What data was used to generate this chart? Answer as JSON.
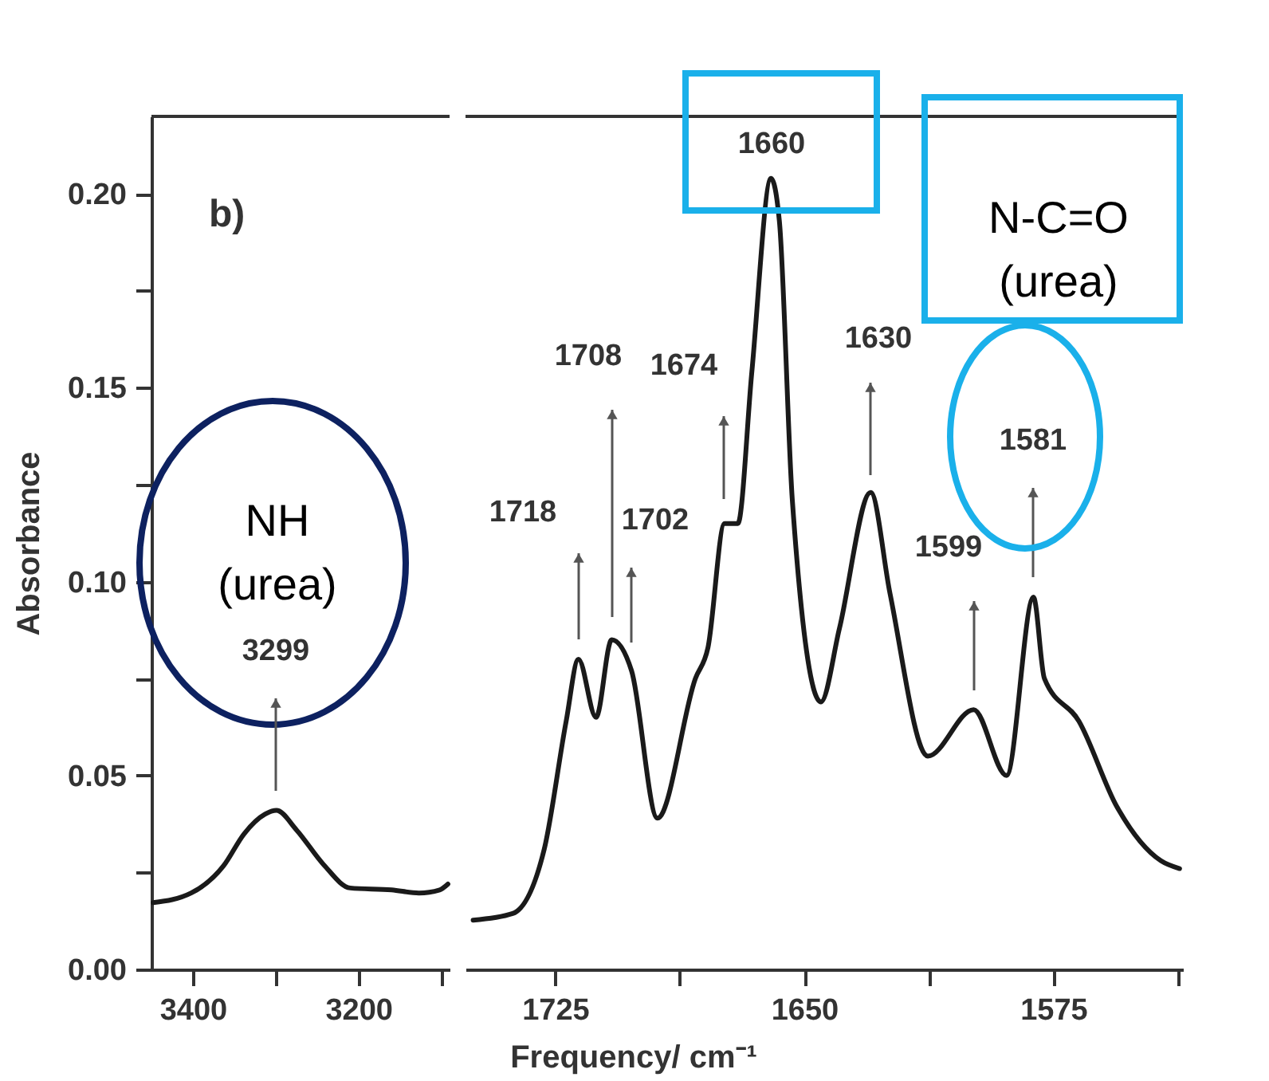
{
  "chart_data": [
    {
      "type": "line",
      "ylabel": "Absorbance",
      "color": "#1a1a1a",
      "xlim": [
        3450,
        3090
      ],
      "ylim": [
        0,
        0.22
      ],
      "xticks": [
        3400,
        {
          "value": 3300,
          "label": null
        },
        3200,
        {
          "value": 3100,
          "label": null
        }
      ],
      "yticks": [
        {
          "value": 0,
          "label": "0.00"
        },
        {
          "value": 0.025,
          "label": null
        },
        {
          "value": 0.05,
          "label": "0.05"
        },
        {
          "value": 0.075,
          "label": null
        },
        {
          "value": 0.1,
          "label": "0.10"
        },
        {
          "value": 0.125,
          "label": null
        },
        {
          "value": 0.15,
          "label": "0.15"
        },
        {
          "value": 0.175,
          "label": null
        },
        {
          "value": 0.2,
          "label": "0.20"
        }
      ],
      "x": [
        3448,
        3402,
        3363,
        3338,
        3313,
        3299,
        3275,
        3242,
        3210,
        3160,
        3127,
        3102,
        3092
      ],
      "values": [
        0.0172,
        0.0197,
        0.0267,
        0.035,
        0.04,
        0.041,
        0.036,
        0.027,
        0.021,
        0.0205,
        0.0197,
        0.0205,
        0.022
      ],
      "annotations": [
        "b)",
        "NH (urea)",
        "3299"
      ]
    },
    {
      "type": "line",
      "xlabel": "Frequency/ cm⁻¹",
      "color": "#1a1a1a",
      "xlim": [
        1752,
        1536
      ],
      "ylim": [
        0,
        0.22
      ],
      "tick_labels": "x",
      "xticks": [
        1725,
        {
          "value": 1687.5,
          "label": null
        },
        1650,
        {
          "value": 1612.5,
          "label": null
        },
        1575,
        {
          "value": 1537.5,
          "label": null
        }
      ],
      "x": [
        1749.7,
        1737.8,
        1728.3,
        1721.7,
        1718,
        1712.7,
        1708,
        1702,
        1694.2,
        1682.8,
        1679,
        1674,
        1670,
        1665.8,
        1660,
        1657.5,
        1653.6,
        1645,
        1639.4,
        1630,
        1624.2,
        1612.8,
        1599,
        1589.1,
        1581,
        1577.7,
        1567.3,
        1555.9,
        1542.6,
        1537
      ],
      "values": [
        0.0127,
        0.0144,
        0.031,
        0.064,
        0.08,
        0.065,
        0.085,
        0.077,
        0.039,
        0.075,
        0.083,
        0.115,
        0.115,
        0.154,
        0.204,
        0.193,
        0.121,
        0.069,
        0.088,
        0.123,
        0.097,
        0.055,
        0.067,
        0.05,
        0.096,
        0.075,
        0.064,
        0.042,
        0.028,
        0.026
      ],
      "annotations": [
        "1718",
        "1708",
        "1702",
        "1674",
        "1660",
        "1630",
        "1599",
        "1581",
        "N-C=O (urea)"
      ]
    }
  ]
}
